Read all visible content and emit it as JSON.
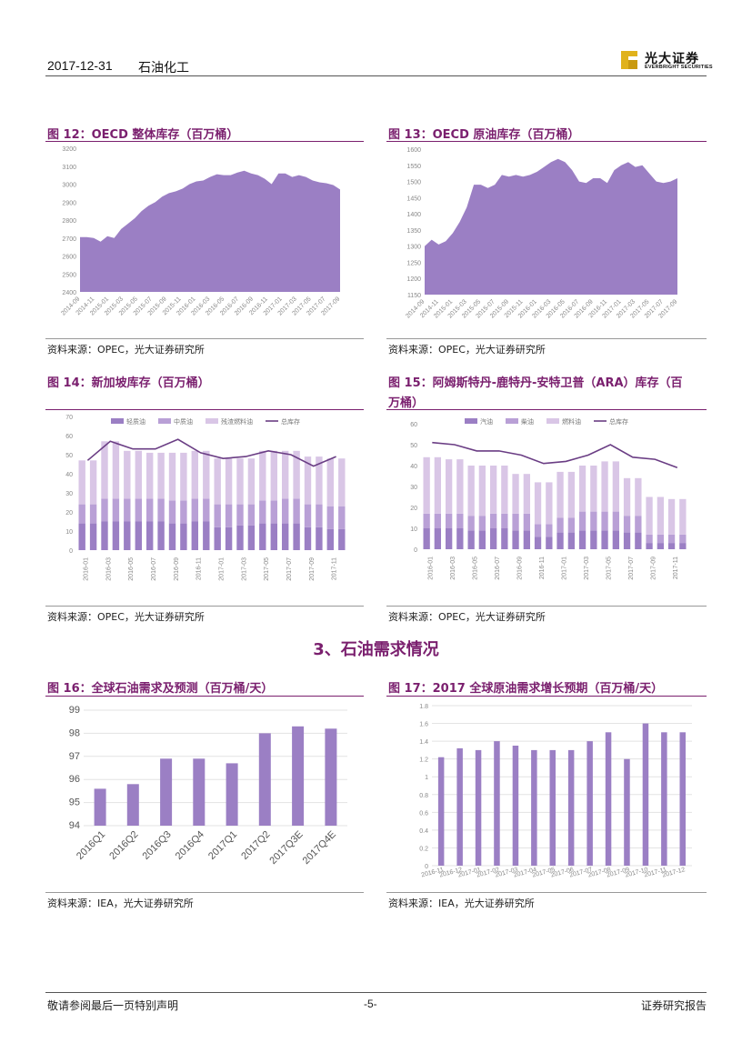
{
  "header": {
    "date": "2017-12-31",
    "industry": "石油化工",
    "logo_cn": "光大证券",
    "logo_en": "EVERBRIGHT SECURITIES"
  },
  "colors": {
    "purple": "#9b7fc4",
    "light_purple": "#d9c6e6",
    "mid_purple": "#b9a0d6",
    "dark_purple": "#6a3d84",
    "brand": "#7a1f6e"
  },
  "section_heading": "3、石油需求情况",
  "figures": {
    "fig12": {
      "title": "图 12：OECD 整体库存（百万桶）",
      "source": "资料来源：OPEC，光大证券研究所"
    },
    "fig13": {
      "title": "图 13：OECD 原油库存（百万桶）",
      "source": "资料来源：OPEC，光大证券研究所"
    },
    "fig14": {
      "title": "图 14：新加坡库存（百万桶）",
      "source": "资料来源：OPEC，光大证券研究所"
    },
    "fig15": {
      "title_line1": "图 15：阿姆斯特丹-鹿特丹-安特卫普（ARA）库存（百",
      "title_line2": "万桶）",
      "source": "资料来源：OPEC，光大证券研究所"
    },
    "fig16": {
      "title": "图 16：全球石油需求及预测（百万桶/天）",
      "source": "资料来源：IEA，光大证券研究所"
    },
    "fig17": {
      "title": "图 17：2017 全球原油需求增长预期（百万桶/天）",
      "source": "资料来源：IEA，光大证券研究所"
    }
  },
  "chart_data": [
    {
      "id": "fig12",
      "type": "area",
      "yticks": [
        "3200",
        "3100",
        "3000",
        "2900",
        "2800",
        "2700",
        "2600",
        "2500",
        "2400"
      ],
      "ylim": [
        2400,
        3200
      ],
      "xticks": [
        "2014-09",
        "2014-11",
        "2015-01",
        "2015-03",
        "2015-05",
        "2015-07",
        "2015-09",
        "2015-11",
        "2016-01",
        "2016-03",
        "2016-05",
        "2016-07",
        "2016-09",
        "2016-11",
        "2017-01",
        "2017-03",
        "2017-05",
        "2017-07",
        "2017-09"
      ],
      "values": [
        2705,
        2705,
        2700,
        2680,
        2710,
        2700,
        2750,
        2780,
        2810,
        2850,
        2880,
        2900,
        2930,
        2950,
        2960,
        2975,
        3000,
        3015,
        3020,
        3040,
        3055,
        3050,
        3050,
        3065,
        3075,
        3060,
        3050,
        3030,
        3000,
        3060,
        3060,
        3040,
        3050,
        3040,
        3020,
        3010,
        3005,
        2995,
        2970
      ],
      "series_name": "OECD整体库存"
    },
    {
      "id": "fig13",
      "type": "area",
      "yticks": [
        "1600",
        "1550",
        "1500",
        "1450",
        "1400",
        "1350",
        "1300",
        "1250",
        "1200",
        "1150"
      ],
      "ylim": [
        1150,
        1600
      ],
      "xticks": [
        "2014-09",
        "2014-11",
        "2015-01",
        "2015-03",
        "2015-05",
        "2015-07",
        "2015-09",
        "2015-11",
        "2016-01",
        "2016-03",
        "2016-05",
        "2016-07",
        "2016-09",
        "2016-11",
        "2017-01",
        "2017-03",
        "2017-05",
        "2017-07",
        "2017-09"
      ],
      "values": [
        1300,
        1320,
        1305,
        1315,
        1340,
        1375,
        1420,
        1490,
        1490,
        1480,
        1490,
        1520,
        1515,
        1520,
        1515,
        1520,
        1530,
        1545,
        1560,
        1570,
        1560,
        1535,
        1500,
        1495,
        1510,
        1510,
        1495,
        1535,
        1550,
        1560,
        1545,
        1550,
        1525,
        1500,
        1495,
        1500,
        1510
      ],
      "series_name": "OECD原油库存"
    },
    {
      "id": "fig14",
      "type": "bar",
      "yticks": [
        "70",
        "60",
        "50",
        "40",
        "30",
        "20",
        "10",
        "0"
      ],
      "ylim": [
        0,
        70
      ],
      "legend": [
        "轻质油",
        "中质油",
        "残渣燃料油",
        "总库存"
      ],
      "xticks": [
        "2016-01",
        "2016-03",
        "2016-05",
        "2016-07",
        "2016-09",
        "2016-11",
        "2017-01",
        "2017-03",
        "2017-05",
        "2017-07",
        "2017-09",
        "2017-11"
      ],
      "series": [
        {
          "name": "轻质油",
          "values": [
            14,
            15,
            15,
            15,
            14,
            15,
            12,
            13,
            14,
            14,
            12,
            11
          ]
        },
        {
          "name": "中质油",
          "values": [
            10,
            12,
            12,
            12,
            12,
            12,
            12,
            11,
            12,
            13,
            12,
            12
          ]
        },
        {
          "name": "残渣燃料油",
          "values": [
            23,
            30,
            25,
            24,
            25,
            25,
            24,
            24,
            26,
            25,
            25,
            25
          ]
        }
      ],
      "line": {
        "name": "总库存",
        "values": [
          47,
          57,
          53,
          53,
          58,
          51,
          48,
          49,
          52,
          50,
          44,
          49
        ]
      }
    },
    {
      "id": "fig15",
      "type": "bar",
      "yticks": [
        "60",
        "50",
        "40",
        "30",
        "20",
        "10",
        "0"
      ],
      "ylim": [
        0,
        60
      ],
      "legend": [
        "汽油",
        "柴油",
        "燃料油",
        "总库存"
      ],
      "xticks": [
        "2016-01",
        "2016-03",
        "2016-05",
        "2016-07",
        "2016-09",
        "2016-11",
        "2017-01",
        "2017-03",
        "2017-05",
        "2017-07",
        "2017-09",
        "2017-11"
      ],
      "series": [
        {
          "name": "汽油",
          "values": [
            10,
            10,
            9,
            10,
            9,
            6,
            8,
            9,
            9,
            8,
            3,
            3
          ]
        },
        {
          "name": "柴油",
          "values": [
            7,
            7,
            7,
            7,
            8,
            6,
            7,
            9,
            9,
            8,
            4,
            4
          ]
        },
        {
          "name": "燃料油",
          "values": [
            27,
            26,
            24,
            23,
            19,
            20,
            22,
            22,
            24,
            18,
            18,
            17
          ]
        }
      ],
      "line": {
        "name": "总库存",
        "values": [
          51,
          50,
          47,
          47,
          45,
          41,
          42,
          45,
          50,
          44,
          43,
          39
        ]
      }
    },
    {
      "id": "fig16",
      "type": "bar",
      "yticks": [
        "99",
        "98",
        "97",
        "96",
        "95",
        "94"
      ],
      "ylim": [
        94,
        99
      ],
      "categories": [
        "2016Q1",
        "2016Q2",
        "2016Q3",
        "2016Q4",
        "2017Q1",
        "2017Q2",
        "2017Q3E",
        "2017Q4E"
      ],
      "values": [
        95.6,
        95.8,
        96.9,
        96.9,
        96.7,
        98.0,
        98.3,
        98.2
      ]
    },
    {
      "id": "fig17",
      "type": "bar",
      "yticks": [
        "1.8",
        "1.6",
        "1.4",
        "1.2",
        "1",
        "0.8",
        "0.6",
        "0.4",
        "0.2",
        "0"
      ],
      "ylim": [
        0,
        1.8
      ],
      "categories": [
        "2016-11",
        "2016-12",
        "2017-01",
        "2017-02",
        "2017-03",
        "2017-04",
        "2017-05",
        "2017-06",
        "2017-07",
        "2017-08",
        "2017-09",
        "2017-10",
        "2017-11",
        "2017-12"
      ],
      "xticks": [
        "2016-11",
        "2016-12",
        "2017-01",
        "2017-02",
        "2017-03",
        "2017-04",
        "2017-05",
        "2017-06",
        "2017-07",
        "2017-08",
        "2017-09",
        "2017-10",
        "2017-11",
        "2017-12"
      ],
      "values": [
        1.22,
        1.32,
        1.3,
        1.4,
        1.35,
        1.3,
        1.3,
        1.3,
        1.4,
        1.5,
        1.2,
        1.6,
        1.5,
        1.5
      ]
    }
  ],
  "footer": {
    "disclaimer": "敬请参阅最后一页特别声明",
    "page": "-5-",
    "report_type": "证券研究报告"
  }
}
